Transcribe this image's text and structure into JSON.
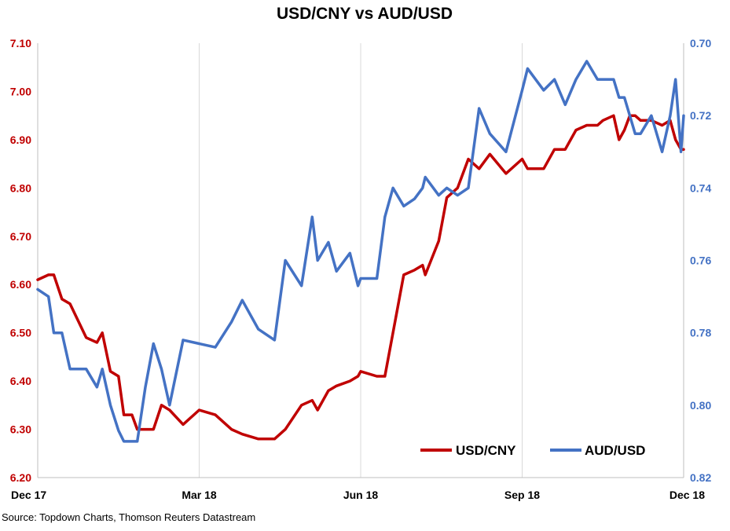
{
  "chart_data": {
    "type": "line",
    "title": "USD/CNY vs AUD/USD",
    "source": "Source: Topdown Charts, Thomson Reuters Datastream",
    "x_tick_labels": [
      "Dec 17",
      "Mar 18",
      "Jun 18",
      "Sep 18",
      "Dec 18"
    ],
    "x_tick_values": [
      0,
      3,
      6,
      9,
      12
    ],
    "xlim": [
      0,
      12
    ],
    "left_axis": {
      "ylim": [
        6.2,
        7.1
      ],
      "ticks": [
        "6.20",
        "6.30",
        "6.40",
        "6.50",
        "6.60",
        "6.70",
        "6.80",
        "6.90",
        "7.00",
        "7.10"
      ],
      "color": "#c00000"
    },
    "right_axis": {
      "ylim": [
        0.82,
        0.7
      ],
      "inverted": true,
      "ticks": [
        "0.70",
        "0.72",
        "0.74",
        "0.76",
        "0.78",
        "0.80",
        "0.82"
      ],
      "color": "#4472c4"
    },
    "grid": "vertical",
    "legend": "bottom-right",
    "series": [
      {
        "name": "USD/CNY",
        "axis": "left",
        "color": "#c00000",
        "x": [
          0,
          0.2,
          0.3,
          0.45,
          0.6,
          0.9,
          1.1,
          1.2,
          1.35,
          1.5,
          1.6,
          1.75,
          1.85,
          2.0,
          2.15,
          2.3,
          2.45,
          2.7,
          3.0,
          3.3,
          3.6,
          3.8,
          4.1,
          4.4,
          4.6,
          4.9,
          5.1,
          5.2,
          5.4,
          5.55,
          5.8,
          5.95,
          6.0,
          6.3,
          6.45,
          6.6,
          6.8,
          7.0,
          7.15,
          7.2,
          7.45,
          7.6,
          7.8,
          8.0,
          8.2,
          8.4,
          8.7,
          9.0,
          9.1,
          9.4,
          9.6,
          9.8,
          10.0,
          10.2,
          10.4,
          10.5,
          10.7,
          10.8,
          10.9,
          11.0,
          11.1,
          11.2,
          11.4,
          11.6,
          11.75,
          11.85,
          11.95,
          12.0
        ],
        "values": [
          6.61,
          6.62,
          6.62,
          6.57,
          6.56,
          6.49,
          6.48,
          6.5,
          6.42,
          6.41,
          6.33,
          6.33,
          6.3,
          6.3,
          6.3,
          6.35,
          6.34,
          6.31,
          6.34,
          6.33,
          6.3,
          6.29,
          6.28,
          6.28,
          6.3,
          6.35,
          6.36,
          6.34,
          6.38,
          6.39,
          6.4,
          6.41,
          6.42,
          6.41,
          6.41,
          6.5,
          6.62,
          6.63,
          6.64,
          6.62,
          6.69,
          6.78,
          6.8,
          6.86,
          6.84,
          6.87,
          6.83,
          6.86,
          6.84,
          6.84,
          6.88,
          6.88,
          6.92,
          6.93,
          6.93,
          6.94,
          6.95,
          6.9,
          6.92,
          6.95,
          6.95,
          6.94,
          6.94,
          6.93,
          6.94,
          6.9,
          6.88,
          6.88
        ]
      },
      {
        "name": "AUD/USD",
        "axis": "right",
        "color": "#4472c4",
        "x": [
          0,
          0.2,
          0.3,
          0.45,
          0.6,
          0.9,
          1.1,
          1.2,
          1.35,
          1.5,
          1.6,
          1.75,
          1.85,
          2.0,
          2.15,
          2.3,
          2.45,
          2.7,
          3.0,
          3.3,
          3.6,
          3.8,
          4.1,
          4.4,
          4.6,
          4.9,
          5.1,
          5.2,
          5.4,
          5.55,
          5.8,
          5.95,
          6.0,
          6.3,
          6.45,
          6.6,
          6.8,
          7.0,
          7.15,
          7.2,
          7.45,
          7.6,
          7.8,
          8.0,
          8.2,
          8.4,
          8.7,
          9.0,
          9.1,
          9.4,
          9.6,
          9.8,
          10.0,
          10.2,
          10.4,
          10.5,
          10.7,
          10.8,
          10.9,
          11.0,
          11.1,
          11.2,
          11.4,
          11.6,
          11.75,
          11.85,
          11.95,
          12.0
        ],
        "values": [
          0.768,
          0.77,
          0.78,
          0.78,
          0.79,
          0.79,
          0.795,
          0.79,
          0.8,
          0.807,
          0.81,
          0.81,
          0.81,
          0.795,
          0.783,
          0.79,
          0.8,
          0.782,
          0.783,
          0.784,
          0.777,
          0.771,
          0.779,
          0.782,
          0.76,
          0.767,
          0.748,
          0.76,
          0.755,
          0.763,
          0.758,
          0.767,
          0.765,
          0.765,
          0.748,
          0.74,
          0.745,
          0.743,
          0.74,
          0.737,
          0.742,
          0.74,
          0.742,
          0.74,
          0.718,
          0.725,
          0.73,
          0.713,
          0.707,
          0.713,
          0.71,
          0.717,
          0.71,
          0.705,
          0.71,
          0.71,
          0.71,
          0.715,
          0.715,
          0.72,
          0.725,
          0.725,
          0.72,
          0.73,
          0.72,
          0.71,
          0.73,
          0.72
        ]
      }
    ]
  }
}
